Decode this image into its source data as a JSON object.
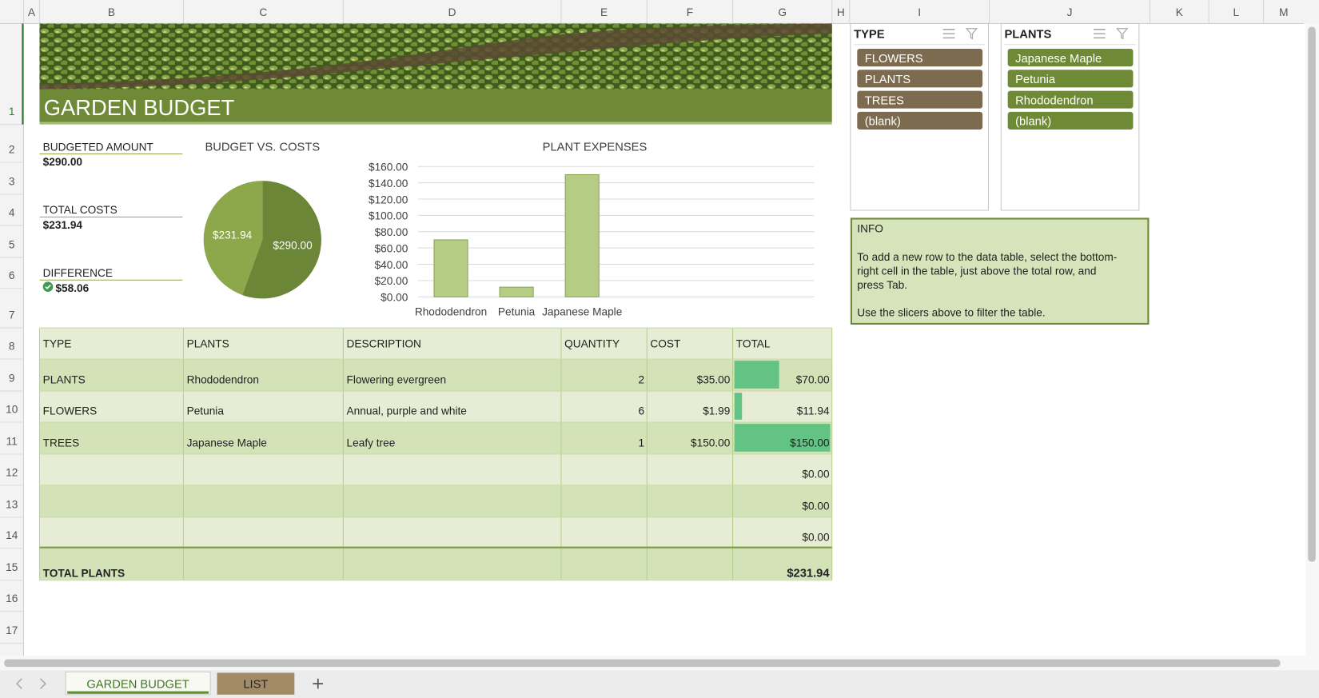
{
  "column_headers": [
    "A",
    "B",
    "C",
    "D",
    "E",
    "F",
    "G",
    "H",
    "I",
    "J",
    "K",
    "L",
    "M"
  ],
  "row_headers": [
    "1",
    "2",
    "3",
    "4",
    "5",
    "6",
    "7",
    "8",
    "9",
    "10",
    "11",
    "12",
    "13",
    "14",
    "15",
    "16",
    "17"
  ],
  "title": "GARDEN BUDGET",
  "summary": [
    {
      "label": "BUDGETED AMOUNT",
      "value": "$290.00"
    },
    {
      "label": "TOTAL COSTS",
      "value": "$231.94"
    },
    {
      "label": "DIFFERENCE",
      "value": "$58.06"
    }
  ],
  "pie_chart": {
    "type": "pie",
    "title": "BUDGET VS. COSTS",
    "values": [
      231.94,
      290.0
    ],
    "value_labels": [
      "$231.94",
      "$290.00"
    ],
    "colors": [
      "#8ca84a",
      "#6b8636"
    ]
  },
  "bar_chart": {
    "type": "bar",
    "title": "PLANT EXPENSES",
    "categories": [
      "Rhododendron",
      "Petunia",
      "Japanese Maple"
    ],
    "values": [
      70,
      11.94,
      150
    ],
    "ylim": [
      0,
      160
    ],
    "yticks": [
      {
        "value": 0,
        "label": "$0.00"
      },
      {
        "value": 20,
        "label": "$20.00"
      },
      {
        "value": 40,
        "label": "$40.00"
      },
      {
        "value": 60,
        "label": "$60.00"
      },
      {
        "value": 80,
        "label": "$80.00"
      },
      {
        "value": 100,
        "label": "$100.00"
      },
      {
        "value": 120,
        "label": "$120.00"
      },
      {
        "value": 140,
        "label": "$140.00"
      },
      {
        "value": 160,
        "label": "$160.00"
      }
    ],
    "grid": true
  },
  "table": {
    "headers": [
      "TYPE",
      "PLANTS",
      "DESCRIPTION",
      "QUANTITY",
      "COST",
      "TOTAL"
    ],
    "rows": [
      [
        "PLANTS",
        "Rhododendron",
        "Flowering evergreen",
        "2",
        "$35.00"
      ],
      [
        "FLOWERS",
        "Petunia",
        "Annual, purple and white",
        "6",
        "$1.99"
      ],
      [
        "TREES",
        "Japanese Maple",
        "Leafy tree",
        "1",
        "$150.00"
      ],
      [
        null,
        null,
        null,
        null,
        null
      ],
      [
        null,
        null,
        null,
        null,
        null
      ],
      [
        null,
        null,
        null,
        null,
        null
      ]
    ],
    "totals": [
      70,
      11.94,
      150,
      0,
      0,
      0
    ],
    "total_labels": [
      "$70.00",
      "$11.94",
      "$150.00",
      "$0.00",
      "$0.00",
      "$0.00"
    ],
    "total_row": {
      "label": "TOTAL PLANTS",
      "value": "$231.94"
    }
  },
  "slicers": [
    {
      "title": "TYPE",
      "items": [
        "FLOWERS",
        "PLANTS",
        "TREES",
        "(blank)"
      ]
    },
    {
      "title": "PLANTS",
      "items": [
        "Japanese Maple",
        "Petunia",
        "Rhododendron",
        "(blank)"
      ]
    }
  ],
  "info": {
    "title": "INFO",
    "paragraphs": [
      [
        "To add a new row to the data table, select the bottom-",
        "right cell in the table, just above the total row, and",
        "press Tab."
      ],
      [
        "Use the slicers above to filter the table."
      ]
    ]
  },
  "sheet_tabs": [
    "GARDEN BUDGET",
    "LIST"
  ]
}
